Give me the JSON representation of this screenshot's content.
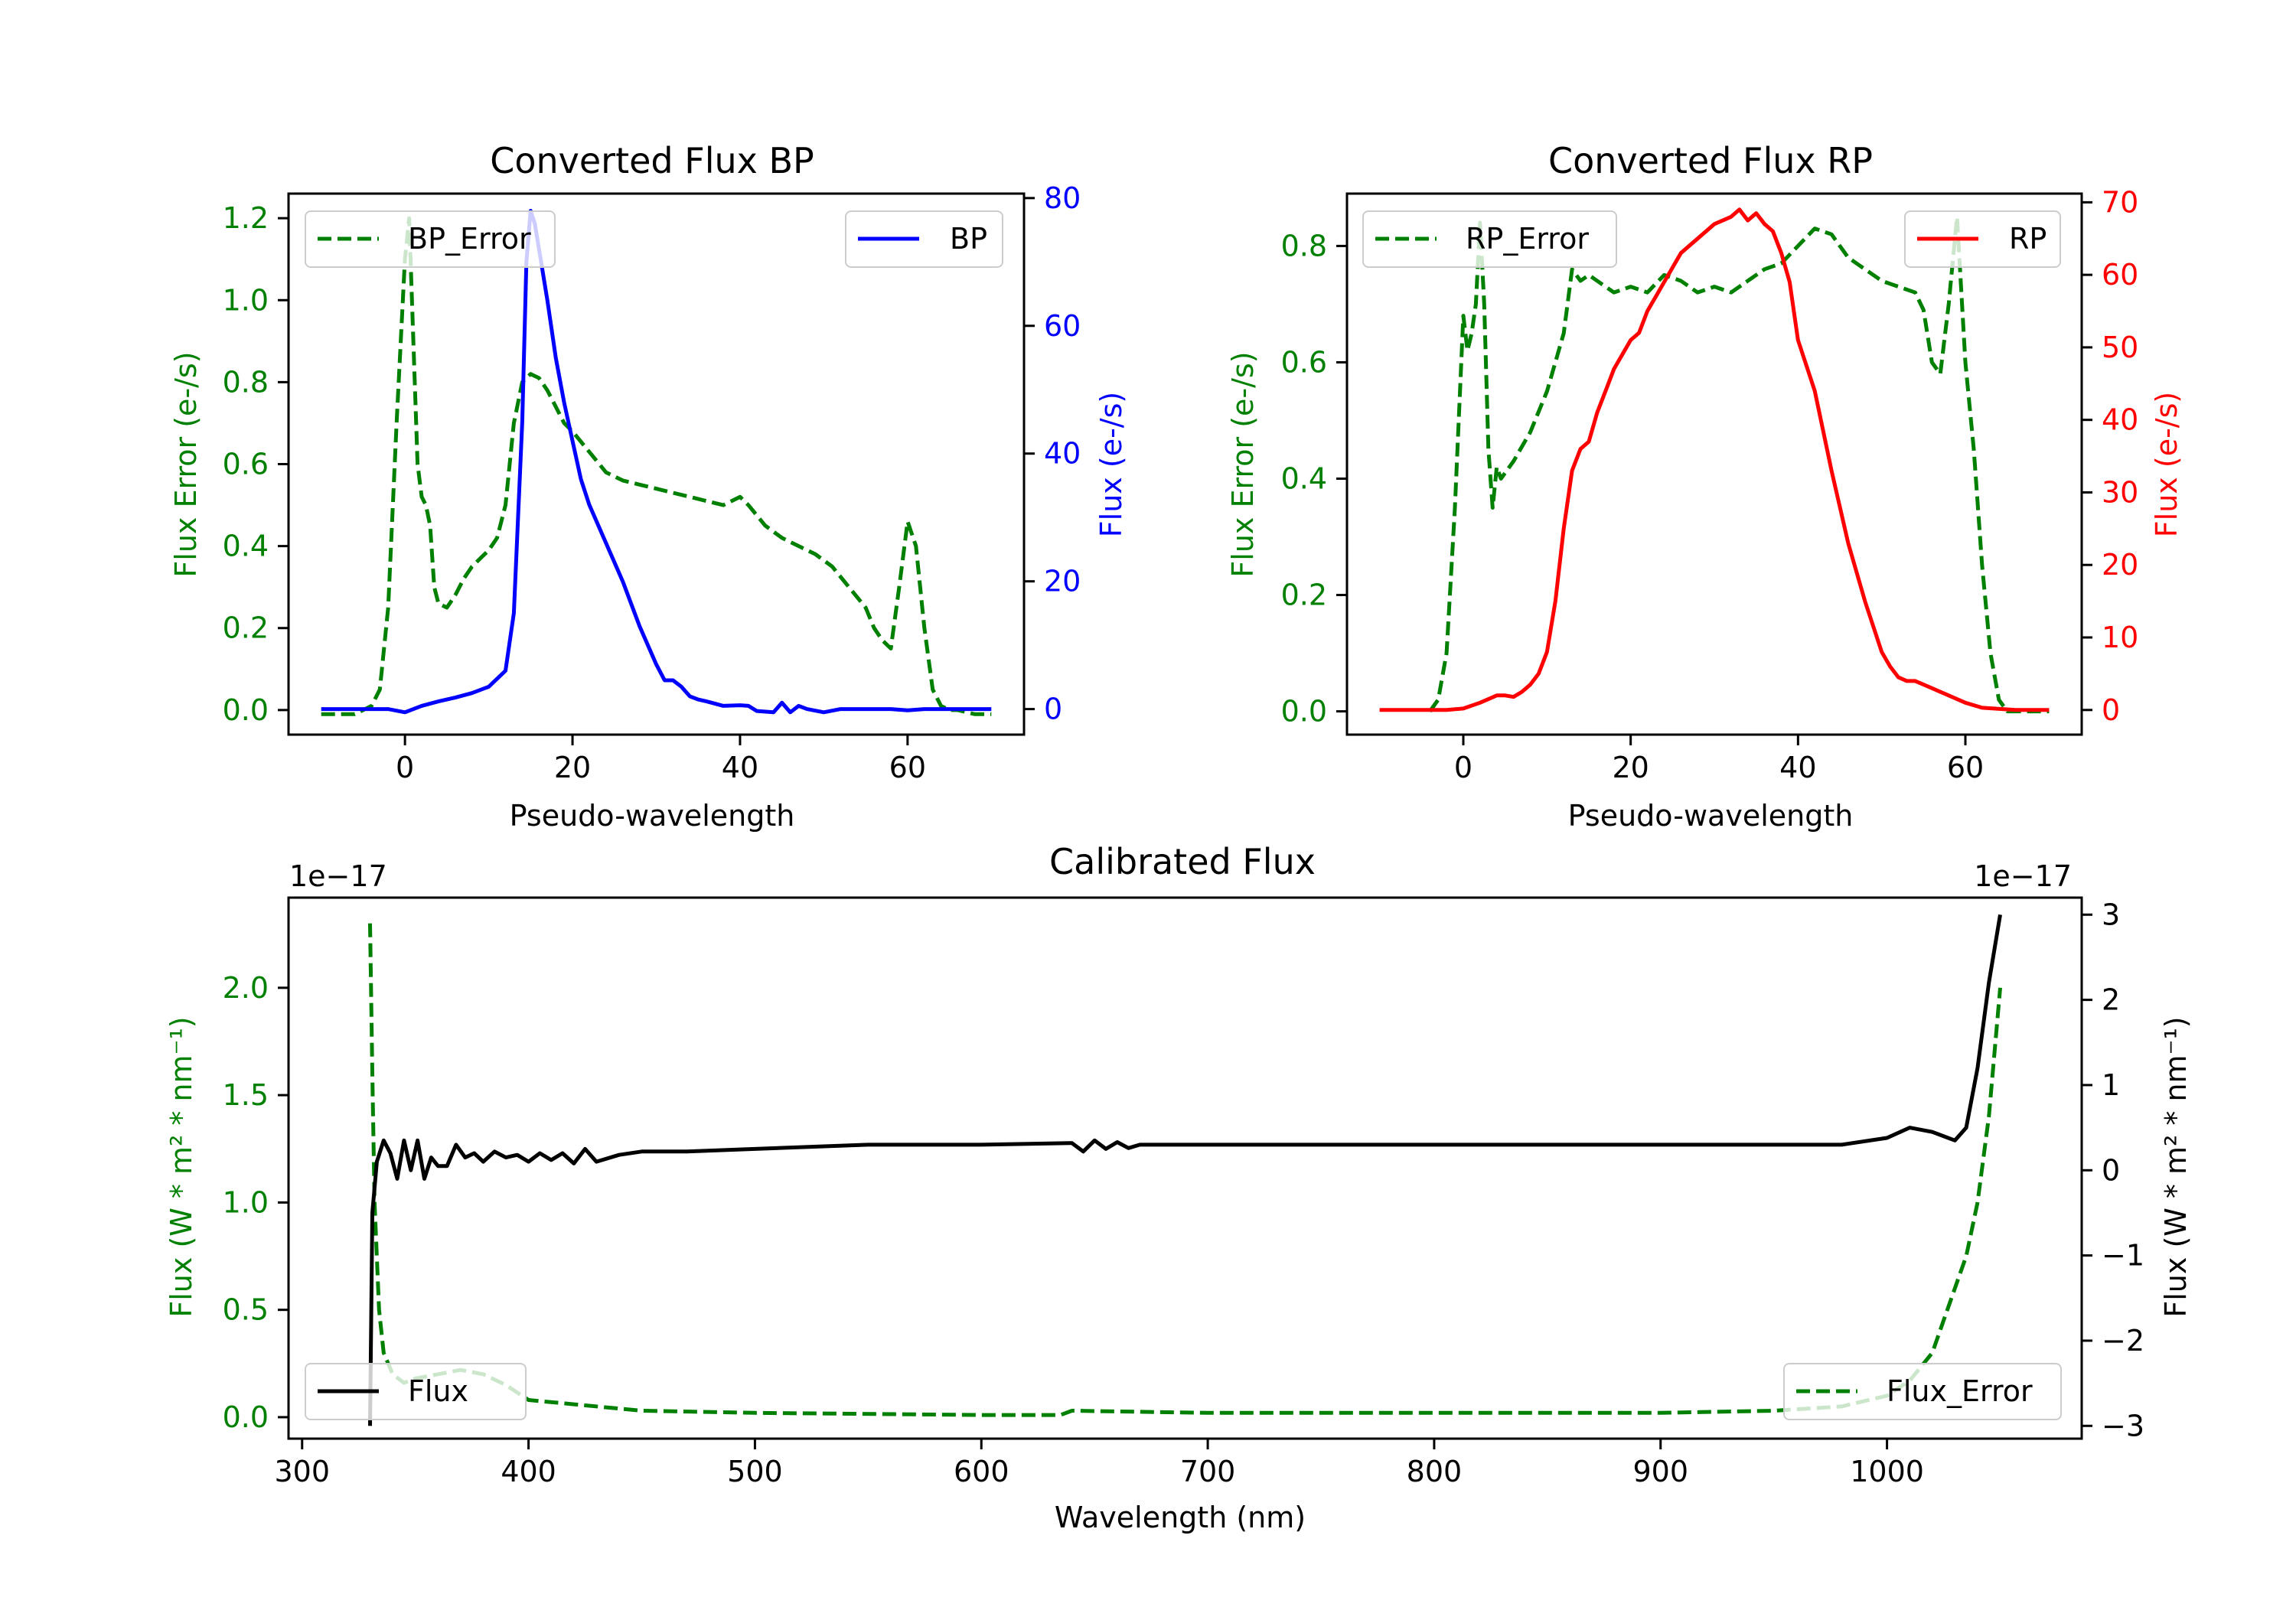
{
  "colors": {
    "error": "#008000",
    "bp": "#0000ff",
    "rp": "#ff0000",
    "flux": "#000000",
    "axis": "#000000",
    "legend_edge": "#cccccc"
  },
  "chart_data": [
    {
      "id": "bp",
      "type": "line",
      "title": "Converted Flux BP",
      "xlabel": "Pseudo-wavelength",
      "ylabel_left": "Flux Error (e-/s)",
      "ylabel_right": "Flux (e-/s)",
      "xlim": [
        -13.9,
        73.9
      ],
      "ylim_left": [
        -0.06,
        1.26
      ],
      "ylim_right": [
        -4,
        80.7
      ],
      "xticks": [
        {
          "v": 0,
          "label": "0"
        },
        {
          "v": 20,
          "label": "20"
        },
        {
          "v": 40,
          "label": "40"
        },
        {
          "v": 60,
          "label": "60"
        }
      ],
      "yticks_left": [
        {
          "v": 0,
          "label": "0.0"
        },
        {
          "v": 0.2,
          "label": "0.2"
        },
        {
          "v": 0.4,
          "label": "0.4"
        },
        {
          "v": 0.6,
          "label": "0.6"
        },
        {
          "v": 0.8,
          "label": "0.8"
        },
        {
          "v": 1.0,
          "label": "1.0"
        },
        {
          "v": 1.2,
          "label": "1.2"
        }
      ],
      "yticks_right": [
        {
          "v": 0,
          "label": "0"
        },
        {
          "v": 20,
          "label": "20"
        },
        {
          "v": 40,
          "label": "40"
        },
        {
          "v": 60,
          "label": "60"
        },
        {
          "v": 80,
          "label": "80"
        }
      ],
      "legend_left": {
        "label": "BP_Error",
        "position": "upper left"
      },
      "legend_right": {
        "label": "BP",
        "position": "upper right"
      },
      "series": [
        {
          "name": "BP_Error",
          "axis": "left",
          "color": "#008000",
          "dashed": true,
          "x": [
            -10,
            -6,
            -4,
            -3,
            -2,
            -1,
            0,
            0.5,
            1,
            1.5,
            2,
            2.5,
            3,
            3.5,
            4,
            5,
            6,
            7,
            8,
            9,
            10,
            11,
            12,
            13,
            14,
            15,
            16,
            17,
            18,
            19,
            20,
            22,
            24,
            26,
            28,
            30,
            32,
            34,
            36,
            38,
            40,
            41,
            43,
            45,
            47,
            49,
            51,
            53,
            55,
            56,
            57,
            58,
            59,
            60,
            61,
            62,
            63,
            64,
            65,
            66,
            68,
            70
          ],
          "y": [
            -0.01,
            -0.01,
            0.01,
            0.05,
            0.25,
            0.7,
            1.1,
            1.2,
            0.9,
            0.6,
            0.52,
            0.5,
            0.45,
            0.3,
            0.26,
            0.25,
            0.28,
            0.32,
            0.35,
            0.37,
            0.39,
            0.42,
            0.5,
            0.7,
            0.8,
            0.82,
            0.81,
            0.78,
            0.74,
            0.7,
            0.68,
            0.63,
            0.58,
            0.56,
            0.55,
            0.54,
            0.53,
            0.52,
            0.51,
            0.5,
            0.52,
            0.5,
            0.45,
            0.42,
            0.4,
            0.38,
            0.35,
            0.3,
            0.25,
            0.2,
            0.17,
            0.15,
            0.3,
            0.46,
            0.4,
            0.2,
            0.05,
            0.01,
            0.0,
            0.0,
            -0.01,
            -0.01
          ]
        },
        {
          "name": "BP",
          "axis": "right",
          "color": "#0000ff",
          "dashed": false,
          "x": [
            -10,
            -6,
            -2,
            0,
            2,
            4,
            6,
            8,
            10,
            12,
            13,
            14,
            14.5,
            15,
            15.5,
            16,
            17,
            18,
            19,
            20,
            21,
            22,
            24,
            26,
            28,
            30,
            31,
            32,
            33,
            34,
            35,
            36,
            38,
            40,
            41,
            42,
            44,
            45,
            46,
            47,
            48,
            50,
            52,
            54,
            56,
            58,
            60,
            62,
            64,
            66,
            68,
            70
          ],
          "y": [
            0,
            0,
            0,
            -0.5,
            0.5,
            1.2,
            1.8,
            2.5,
            3.5,
            6,
            15,
            45,
            70,
            78,
            76,
            72,
            64,
            55,
            48,
            42,
            36,
            32,
            26,
            20,
            13,
            7,
            4.5,
            4.5,
            3.5,
            2,
            1.5,
            1.2,
            0.5,
            0.6,
            0.5,
            -0.3,
            -0.5,
            1.0,
            -0.5,
            0.5,
            0,
            -0.5,
            0,
            0,
            0,
            0,
            -0.2,
            0,
            0,
            0,
            0,
            0
          ]
        }
      ]
    },
    {
      "id": "rp",
      "type": "line",
      "title": "Converted Flux RP",
      "xlabel": "Pseudo-wavelength",
      "ylabel_left": "Flux Error (e-/s)",
      "ylabel_right": "Flux (e-/s)",
      "xlim": [
        -13.9,
        73.9
      ],
      "ylim_left": [
        -0.04,
        0.89
      ],
      "ylim_right": [
        -3.4,
        71.2
      ],
      "xticks": [
        {
          "v": 0,
          "label": "0"
        },
        {
          "v": 20,
          "label": "20"
        },
        {
          "v": 40,
          "label": "40"
        },
        {
          "v": 60,
          "label": "60"
        }
      ],
      "yticks_left": [
        {
          "v": 0,
          "label": "0.0"
        },
        {
          "v": 0.2,
          "label": "0.2"
        },
        {
          "v": 0.4,
          "label": "0.4"
        },
        {
          "v": 0.6,
          "label": "0.6"
        },
        {
          "v": 0.8,
          "label": "0.8"
        }
      ],
      "yticks_right": [
        {
          "v": 0,
          "label": "0"
        },
        {
          "v": 10,
          "label": "10"
        },
        {
          "v": 20,
          "label": "20"
        },
        {
          "v": 30,
          "label": "30"
        },
        {
          "v": 40,
          "label": "40"
        },
        {
          "v": 50,
          "label": "50"
        },
        {
          "v": 60,
          "label": "60"
        },
        {
          "v": 70,
          "label": "70"
        }
      ],
      "legend_left": {
        "label": "RP_Error",
        "position": "upper left"
      },
      "legend_right": {
        "label": "RP",
        "position": "upper right"
      },
      "series": [
        {
          "name": "RP_Error",
          "axis": "left",
          "color": "#008000",
          "dashed": true,
          "x": [
            -4,
            -3,
            -2,
            -1,
            0,
            0.5,
            1,
            1.5,
            2,
            2.5,
            3,
            3.5,
            4,
            4.5,
            5,
            6,
            8,
            10,
            12,
            13,
            14,
            15,
            16,
            18,
            20,
            22,
            24,
            26,
            28,
            30,
            32,
            34,
            36,
            38,
            40,
            42,
            44,
            46,
            48,
            50,
            52,
            54,
            55,
            56,
            57,
            58,
            59,
            60,
            61,
            62,
            63,
            64,
            65,
            70
          ],
          "y": [
            0.0,
            0.02,
            0.1,
            0.35,
            0.68,
            0.62,
            0.65,
            0.7,
            0.84,
            0.7,
            0.45,
            0.35,
            0.42,
            0.4,
            0.41,
            0.43,
            0.48,
            0.55,
            0.65,
            0.76,
            0.74,
            0.75,
            0.74,
            0.72,
            0.73,
            0.72,
            0.75,
            0.74,
            0.72,
            0.73,
            0.72,
            0.74,
            0.76,
            0.77,
            0.8,
            0.83,
            0.82,
            0.78,
            0.76,
            0.74,
            0.73,
            0.72,
            0.69,
            0.6,
            0.58,
            0.7,
            0.85,
            0.6,
            0.45,
            0.25,
            0.1,
            0.02,
            0.0,
            0.0
          ]
        },
        {
          "name": "RP",
          "axis": "right",
          "color": "#ff0000",
          "dashed": false,
          "x": [
            -10,
            -6,
            -2,
            0,
            2,
            4,
            5,
            6,
            7,
            8,
            9,
            10,
            11,
            12,
            13,
            14,
            15,
            16,
            17,
            18,
            19,
            20,
            21,
            22,
            23,
            24,
            26,
            28,
            30,
            32,
            33,
            34,
            35,
            36,
            37,
            38,
            39,
            40,
            42,
            44,
            46,
            48,
            50,
            51,
            52,
            53,
            54,
            55,
            56,
            57,
            58,
            60,
            62,
            66,
            70
          ],
          "y": [
            0,
            0,
            0,
            0.2,
            1.0,
            2.0,
            2.0,
            1.8,
            2.5,
            3.5,
            5,
            8,
            15,
            25,
            33,
            36,
            37,
            41,
            44,
            47,
            49,
            51,
            52,
            55,
            57,
            59,
            63,
            65,
            67,
            68,
            69,
            67.5,
            68.5,
            67,
            66,
            63,
            59,
            51,
            44,
            33,
            23,
            15,
            8,
            6,
            4.5,
            4,
            4,
            3.5,
            3.0,
            2.5,
            2,
            1.0,
            0.3,
            0,
            0
          ]
        }
      ]
    },
    {
      "id": "cal",
      "type": "line",
      "title": "Calibrated Flux",
      "xlabel": "Wavelength (nm)",
      "ylabel_left": "Flux (W * m² * nm⁻¹)",
      "ylabel_right": "Flux (W * m² * nm⁻¹)",
      "offset_left": "1e−17",
      "offset_right": "1e−17",
      "xlim": [
        294,
        1086
      ],
      "ylim_left": [
        -0.1,
        2.42
      ],
      "ylim_right": [
        -3.15,
        3.2
      ],
      "xticks": [
        {
          "v": 300,
          "label": "300"
        },
        {
          "v": 400,
          "label": "400"
        },
        {
          "v": 500,
          "label": "500"
        },
        {
          "v": 600,
          "label": "600"
        },
        {
          "v": 700,
          "label": "700"
        },
        {
          "v": 800,
          "label": "800"
        },
        {
          "v": 900,
          "label": "900"
        },
        {
          "v": 1000,
          "label": "1000"
        }
      ],
      "yticks_left": [
        {
          "v": 0,
          "label": "0.0"
        },
        {
          "v": 0.5,
          "label": "0.5"
        },
        {
          "v": 1.0,
          "label": "1.0"
        },
        {
          "v": 1.5,
          "label": "1.5"
        },
        {
          "v": 2.0,
          "label": "2.0"
        }
      ],
      "yticks_right": [
        {
          "v": -3,
          "label": "−3"
        },
        {
          "v": -2,
          "label": "−2"
        },
        {
          "v": -1,
          "label": "−1"
        },
        {
          "v": 0,
          "label": "0"
        },
        {
          "v": 1,
          "label": "1"
        },
        {
          "v": 2,
          "label": "2"
        },
        {
          "v": 3,
          "label": "3"
        }
      ],
      "legend_left": {
        "label": "Flux",
        "position": "lower left"
      },
      "legend_right": {
        "label": "Flux_Error",
        "position": "lower right"
      },
      "series": [
        {
          "name": "Flux_Error",
          "axis": "left",
          "color": "#008000",
          "dashed": true,
          "x": [
            330,
            331,
            332,
            334,
            336,
            340,
            345,
            350,
            360,
            370,
            380,
            390,
            400,
            420,
            450,
            500,
            600,
            635,
            640,
            700,
            800,
            900,
            950,
            980,
            1000,
            1010,
            1020,
            1025,
            1030,
            1035,
            1040,
            1045,
            1050
          ],
          "y": [
            2.3,
            1.6,
            1.0,
            0.5,
            0.3,
            0.2,
            0.16,
            0.18,
            0.2,
            0.22,
            0.2,
            0.15,
            0.08,
            0.06,
            0.03,
            0.02,
            0.01,
            0.01,
            0.03,
            0.02,
            0.02,
            0.02,
            0.03,
            0.05,
            0.1,
            0.17,
            0.3,
            0.45,
            0.6,
            0.75,
            1.0,
            1.4,
            2.0
          ]
        },
        {
          "name": "Flux",
          "axis": "right",
          "color": "#000000",
          "dashed": false,
          "x": [
            330,
            331,
            333,
            336,
            339,
            342,
            345,
            348,
            351,
            354,
            357,
            360,
            364,
            368,
            372,
            376,
            380,
            385,
            390,
            395,
            400,
            405,
            410,
            415,
            420,
            425,
            430,
            440,
            450,
            470,
            500,
            550,
            600,
            640,
            645,
            650,
            655,
            660,
            665,
            670,
            700,
            800,
            900,
            980,
            1000,
            1010,
            1020,
            1030,
            1035,
            1040,
            1045,
            1050
          ],
          "y": [
            -3.0,
            -0.5,
            0.1,
            0.35,
            0.2,
            -0.1,
            0.35,
            0.0,
            0.35,
            -0.1,
            0.15,
            0.05,
            0.05,
            0.3,
            0.15,
            0.2,
            0.1,
            0.22,
            0.15,
            0.18,
            0.1,
            0.2,
            0.12,
            0.2,
            0.08,
            0.25,
            0.1,
            0.18,
            0.22,
            0.22,
            0.25,
            0.3,
            0.3,
            0.32,
            0.22,
            0.35,
            0.25,
            0.33,
            0.26,
            0.3,
            0.3,
            0.3,
            0.3,
            0.3,
            0.38,
            0.5,
            0.45,
            0.35,
            0.5,
            1.2,
            2.2,
            3.0
          ]
        }
      ]
    }
  ]
}
